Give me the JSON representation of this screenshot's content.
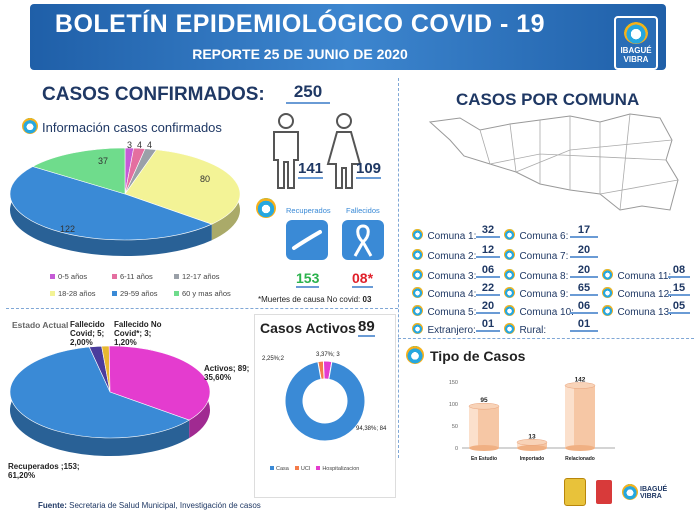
{
  "header": {
    "title": "BOLETÍN EPIDEMIOLÓGICO COVID - 19",
    "subtitle": "REPORTE 25 DE JUNIO DE 2020",
    "logo_text_1": "IBAGUÉ",
    "logo_text_2": "VIBRA"
  },
  "confirmed": {
    "title": "CASOS CONFIRMADOS:",
    "value": "250",
    "section_label": "Información casos confirmados",
    "men": "141",
    "women": "109",
    "recovered_label": "Recuperados",
    "deceased_label": "Fallecidos",
    "recovered_value": "153",
    "deceased_value": "08*",
    "note_prefix": "*Muertes de causa No covid:",
    "note_value": "03"
  },
  "age_pie": {
    "type": "pie",
    "values": [
      3,
      4,
      4,
      80,
      122,
      37
    ],
    "labels": [
      "3",
      "4",
      "4",
      "80",
      "122",
      "37"
    ],
    "legend": [
      "0-5 años",
      "6-11 años",
      "12-17 años",
      "18-28 años",
      "29-59 años",
      "60 y mas años"
    ],
    "colors": [
      "#c55bd6",
      "#e46fa0",
      "#9aa0a8",
      "#f3f396",
      "#3a8ad6",
      "#6fdc8c"
    ]
  },
  "state_pie": {
    "type": "pie",
    "title": "Estado Actual",
    "values": [
      5,
      3,
      89,
      153
    ],
    "labels": [
      "Fallecido Covid; 5; 2,00%",
      "Fallecido No Covid*; 3; 1,20%",
      "Activos; 89; 35,60%",
      "Recuperados ;153; 61,20%"
    ],
    "colors": [
      "#4a3c9c",
      "#e8b830",
      "#e43ccf",
      "#3a8ad6"
    ]
  },
  "active": {
    "title": "Casos Activos",
    "value": "89",
    "labels": [
      "2,25%;2",
      "3,37%; 3",
      "94,38%; 84"
    ],
    "legend": [
      "Casa",
      "UCI",
      "Hospitalizacion"
    ],
    "values": [
      84,
      2,
      3
    ],
    "colors": [
      "#3a8ad6",
      "#f47b4a",
      "#e43ccf"
    ]
  },
  "comunas": {
    "title": "CASOS POR COMUNA",
    "items": [
      {
        "label": "Comuna 1:",
        "value": "32"
      },
      {
        "label": "Comuna 6:",
        "value": "17"
      },
      {
        "label": "Comuna 2:",
        "value": "12"
      },
      {
        "label": "Comuna 7:",
        "value": "20"
      },
      {
        "label": "Comuna 3:",
        "value": "06"
      },
      {
        "label": "Comuna 8:",
        "value": "20"
      },
      {
        "label": "Comuna 11:",
        "value": "08"
      },
      {
        "label": "Comuna 4:",
        "value": "22"
      },
      {
        "label": "Comuna 9:",
        "value": "65"
      },
      {
        "label": "Comuna 12:",
        "value": "15"
      },
      {
        "label": "Comuna 5:",
        "value": "20"
      },
      {
        "label": "Comuna 10:",
        "value": "06"
      },
      {
        "label": "Comuna 13:",
        "value": "05"
      },
      {
        "label": "Extranjero:",
        "value": "01"
      },
      {
        "label": "Rural:",
        "value": "01"
      }
    ]
  },
  "chart_data": {
    "type": "bar",
    "title": "Tipo de Casos",
    "categories": [
      "En Estudio",
      "Importado",
      "Relacionado"
    ],
    "values": [
      95,
      13,
      142
    ],
    "ylim": [
      0,
      150
    ],
    "yticks": [
      "0",
      "50",
      "100",
      "150"
    ],
    "value_labels": [
      "95",
      "13",
      "142"
    ]
  },
  "footer": {
    "label": "Fuente:",
    "text": "Secretaria de Salud Municipal, Investigación de casos"
  }
}
